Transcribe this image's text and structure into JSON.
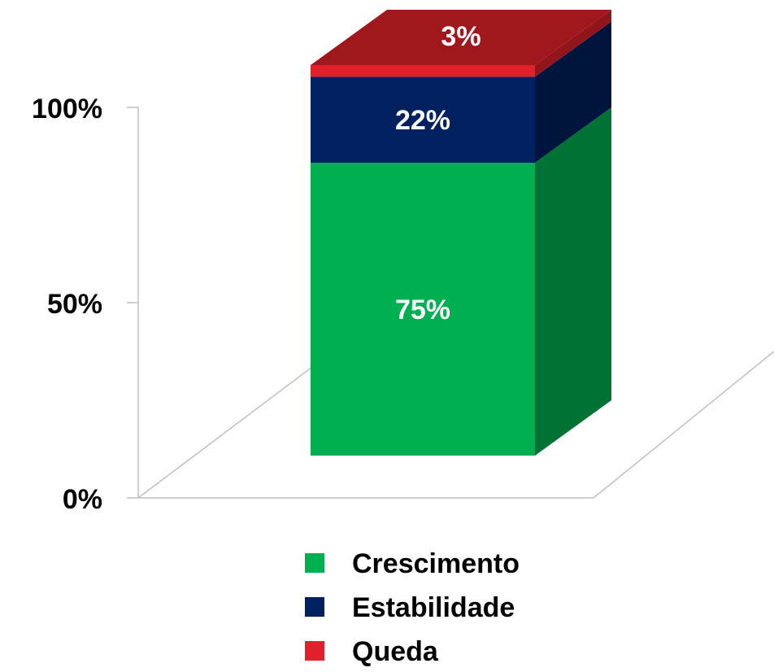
{
  "chart_data": {
    "type": "bar3d_stacked",
    "categories": [
      null
    ],
    "series": [
      {
        "name": "Crescimento",
        "color": "#00b050",
        "values": [
          75
        ],
        "value_labels": [
          "75%"
        ]
      },
      {
        "name": "Estabilidade",
        "color": "#002060",
        "values": [
          22
        ],
        "value_labels": [
          "22%"
        ]
      },
      {
        "name": "Queda",
        "color": "#e0202a",
        "values": [
          3
        ],
        "value_labels": [
          "3%"
        ]
      }
    ],
    "ylim": [
      0,
      100
    ],
    "yticks": [
      {
        "value": 0,
        "label": "0%"
      },
      {
        "value": 50,
        "label": "50%"
      },
      {
        "value": 100,
        "label": "100%"
      }
    ],
    "legend": "bottom"
  }
}
